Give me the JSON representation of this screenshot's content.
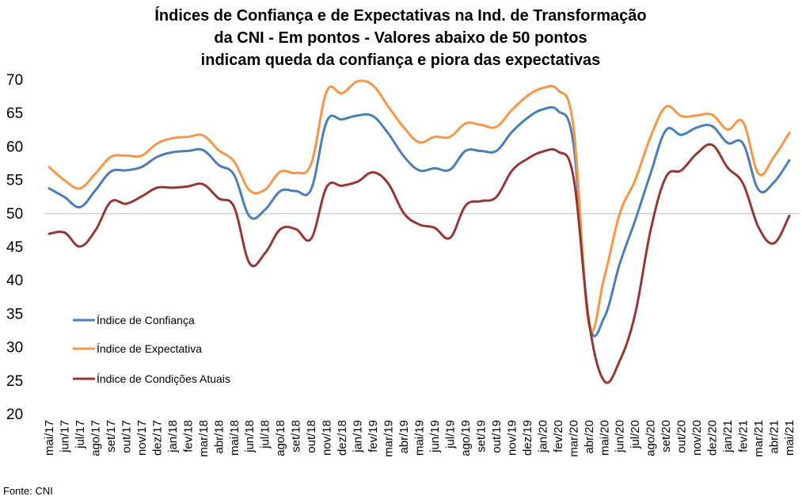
{
  "chart_data": {
    "type": "line",
    "title_lines": [
      "Índices de Confiança e de Expectativas na Ind. de Transformação",
      "da CNI - Em pontos - Valores abaixo de 50 pontos",
      "indicam queda da confiança e piora das expectativas"
    ],
    "source": "Fonte: CNI",
    "ylim": [
      20,
      70
    ],
    "yticks": [
      20,
      25,
      30,
      35,
      40,
      45,
      50,
      55,
      60,
      65,
      70
    ],
    "reference_line": 50,
    "grid": false,
    "legend_position": "inside-left",
    "categories": [
      "mai/17",
      "jun/17",
      "jul/17",
      "ago/17",
      "set/17",
      "out/17",
      "nov/17",
      "dez/17",
      "jan/18",
      "fev/18",
      "mar/18",
      "abr/18",
      "mai/18",
      "jun/18",
      "jul/18",
      "ago/18",
      "set/18",
      "out/18",
      "nov/18",
      "dez/18",
      "jan/19",
      "fev/19",
      "mar/19",
      "abr/19",
      "mai/19",
      "jun/19",
      "jul/19",
      "ago/19",
      "set/19",
      "out/19",
      "nov/19",
      "dez/19",
      "jan/20",
      "fev/20",
      "mar/20",
      "abr/20",
      "mai/20",
      "jun/20",
      "jul/20",
      "ago/20",
      "set/20",
      "out/20",
      "nov/20",
      "dez/20",
      "jan/21",
      "fev/21",
      "mar/21",
      "abr/21",
      "mai/21"
    ],
    "series": [
      {
        "name": "Índice de Confiança",
        "color": "#4a7ebb",
        "values": [
          53.8,
          52.5,
          51.0,
          53.5,
          56.3,
          56.5,
          57.0,
          58.5,
          59.2,
          59.4,
          59.5,
          57.3,
          55.8,
          49.6,
          50.6,
          53.4,
          53.4,
          53.7,
          63.8,
          64.1,
          64.7,
          64.6,
          62.0,
          58.6,
          56.5,
          56.8,
          56.6,
          59.4,
          59.4,
          59.4,
          62.2,
          64.3,
          65.6,
          65.4,
          60.5,
          34.0,
          34.5,
          42.5,
          49.0,
          56.0,
          62.5,
          61.8,
          62.9,
          63.1,
          60.6,
          60.5,
          53.6,
          54.7,
          58.0
        ]
      },
      {
        "name": "Índice de Expectativa",
        "color": "#f79646",
        "values": [
          57.0,
          55.0,
          53.8,
          56.0,
          58.5,
          58.7,
          58.7,
          60.5,
          61.3,
          61.5,
          61.7,
          59.5,
          57.8,
          53.5,
          53.6,
          56.3,
          56.1,
          57.5,
          68.3,
          68.0,
          69.8,
          69.2,
          66.0,
          62.9,
          60.7,
          61.5,
          61.5,
          63.5,
          63.3,
          63.0,
          65.5,
          67.6,
          68.8,
          68.5,
          63.0,
          33.5,
          40.5,
          50.0,
          55.0,
          61.5,
          66.0,
          64.6,
          64.7,
          64.8,
          62.6,
          63.7,
          56.0,
          58.5,
          62.1
        ]
      },
      {
        "name": "Índice de Condições Atuais",
        "color": "#953735",
        "values": [
          47.0,
          47.2,
          45.1,
          47.5,
          51.8,
          51.5,
          52.6,
          53.9,
          53.9,
          54.1,
          54.4,
          52.3,
          51.0,
          42.6,
          44.1,
          47.7,
          47.7,
          46.3,
          54.0,
          54.2,
          54.8,
          56.2,
          54.5,
          50.1,
          48.4,
          47.9,
          46.4,
          51.2,
          51.9,
          52.5,
          56.4,
          58.2,
          59.3,
          59.3,
          55.5,
          34.0,
          25.0,
          28.0,
          35.0,
          47.5,
          55.5,
          56.5,
          59.0,
          60.3,
          56.9,
          54.5,
          48.0,
          45.6,
          49.7
        ]
      }
    ]
  }
}
